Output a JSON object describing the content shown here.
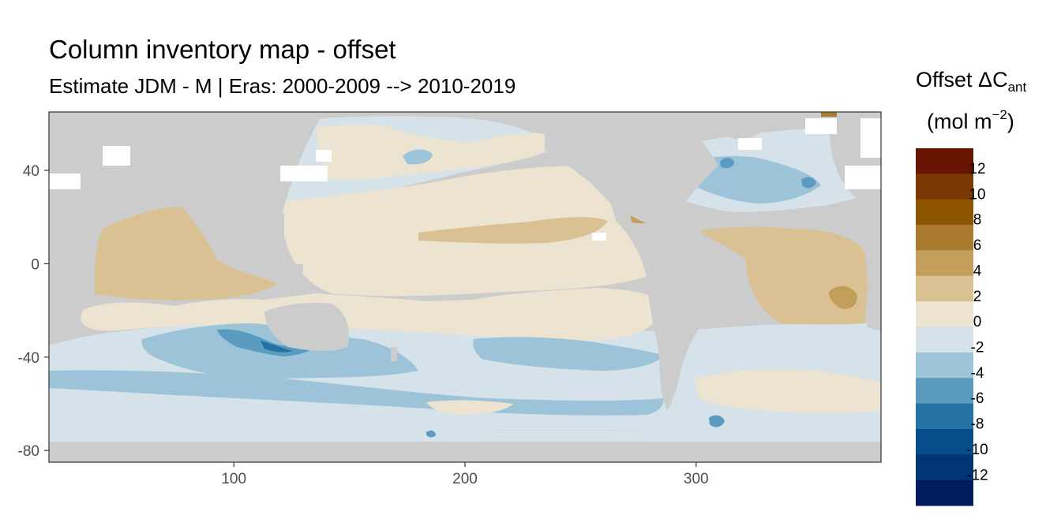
{
  "title": "Column inventory map - offset",
  "subtitle": "Estimate JDM - M | Eras: 2000-2009 --> 2010-2019",
  "legend": {
    "title_main": "Offset ΔC",
    "title_sub": "ant",
    "units_main": "(mol m",
    "units_exp": "−2",
    "units_close": ")",
    "bins": [
      {
        "label": "12",
        "color": "#671500"
      },
      {
        "label": "10",
        "color": "#7c3802"
      },
      {
        "label": "8",
        "color": "#8f5602"
      },
      {
        "label": "6",
        "color": "#aa7b2e"
      },
      {
        "label": "4",
        "color": "#c29e5a"
      },
      {
        "label": "2",
        "color": "#d9c194"
      },
      {
        "label": "0",
        "color": "#ede3d1"
      },
      {
        "label": "-2",
        "color": "#d5e2ea"
      },
      {
        "label": "-4",
        "color": "#9dc3d9"
      },
      {
        "label": "-6",
        "color": "#5a9bbf"
      },
      {
        "label": "-8",
        "color": "#2471a3"
      },
      {
        "label": "-10",
        "color": "#064f8a"
      },
      {
        "label": "-12",
        "color": "#003474"
      },
      {
        "label": "",
        "color": "#001b5e"
      }
    ]
  },
  "map": {
    "x_ticks": [
      100,
      200,
      300
    ],
    "y_ticks": [
      40,
      0,
      -40,
      -80
    ],
    "xlim": [
      20,
      380
    ],
    "ylim": [
      -85,
      65
    ],
    "colors": {
      "land": "#cccccc",
      "pos2": "#d9c194",
      "pos4": "#c29e5a",
      "pos6": "#aa7b2e",
      "zero": "#ede3d1",
      "neg2": "#d5e2ea",
      "neg4": "#9dc3d9",
      "neg6": "#5a9bbf",
      "neg8": "#2471a3",
      "nodata": "#ffffff"
    }
  }
}
